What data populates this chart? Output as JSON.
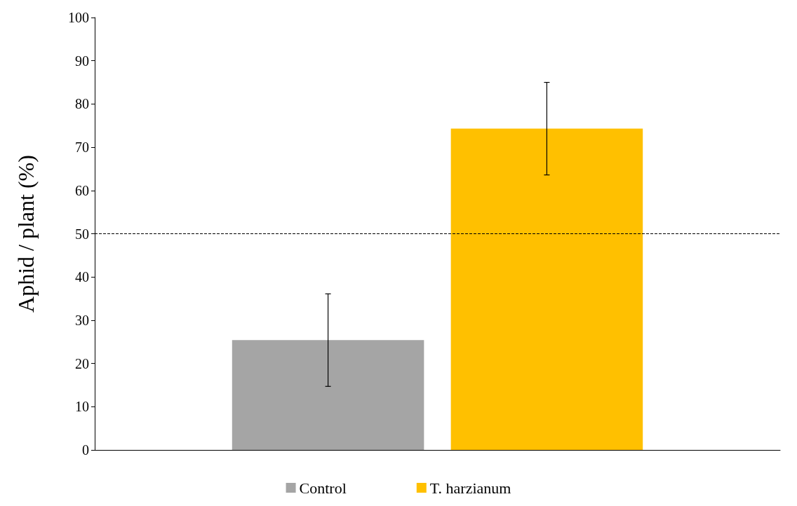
{
  "chart_data": {
    "type": "bar",
    "ylabel": "Aphid / plant (%)",
    "categories": [
      null
    ],
    "series": [
      {
        "name": "Control",
        "color": "#a5a5a5",
        "values": [
          25.4
        ],
        "errors": [
          10.7
        ]
      },
      {
        "name": "T. harzianum",
        "color": "#ffc000",
        "values": [
          74.3
        ],
        "errors": [
          10.7
        ]
      }
    ],
    "ylim": [
      0,
      100
    ],
    "yticks": [
      0,
      10,
      20,
      30,
      40,
      50,
      60,
      70,
      80,
      90,
      100
    ],
    "grid": false,
    "legend": "bottom",
    "ref_lines": [
      {
        "axis": "y",
        "value": 50,
        "color": "#000000",
        "line_style": "dashed"
      }
    ]
  }
}
